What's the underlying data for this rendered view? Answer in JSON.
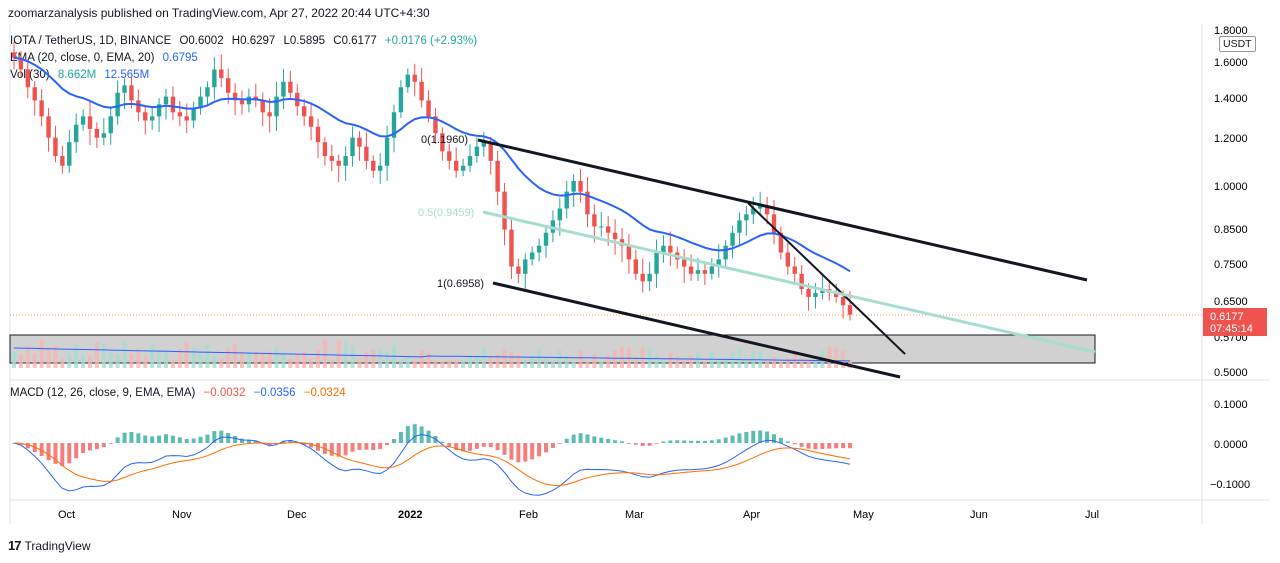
{
  "header": {
    "publisher": "zoomarzanalysis published on TradingView.com, Apr 27, 2022 20:44 UTC+4:30"
  },
  "watermark": {
    "logo": "17",
    "text": "TradingView"
  },
  "price_axis": {
    "unit_label": "USDT",
    "ticks": [
      "1.8000",
      "1.6000",
      "1.4000",
      "1.2000",
      "1.0000",
      "0.8500",
      "0.7500",
      "0.6500",
      "0.5700",
      "0.5000"
    ],
    "last_price": "0.6177",
    "countdown": "07:45:14",
    "last_price_color": "#ef5350"
  },
  "macd_axis": {
    "ticks": [
      "0.1000",
      "0.0000",
      "−0.1000"
    ]
  },
  "time_axis": {
    "labels": [
      "Oct",
      "Nov",
      "Dec",
      "2022",
      "Feb",
      "Mar",
      "Apr",
      "May",
      "Jun",
      "Jul"
    ]
  },
  "legend_main": {
    "symbol": "IOTA / TetherUS, 1D, BINANCE",
    "open": "O0.6002",
    "high": "H0.6297",
    "low": "L0.5895",
    "close": "C0.6177",
    "change": "+0.0176 (+2.93%)",
    "change_color": "#26a69a"
  },
  "legend_ema": {
    "label": "EMA (20, close, 0, EMA, 20)",
    "value": "0.6795",
    "color": "#2962ff"
  },
  "legend_vol": {
    "label": "Vol (30)",
    "value1": "8.662M",
    "value2": "12.565M",
    "color1": "#26a69a",
    "color2": "#2962ff"
  },
  "legend_macd": {
    "label": "MACD (12, 26, close, 9, EMA, EMA)",
    "hist": "−0.0032",
    "macd": "−0.0356",
    "signal": "−0.0324",
    "hist_color": "#ef5350",
    "macd_color": "#2962ff",
    "signal_color": "#ff6d00"
  },
  "annotations": {
    "fib_top": "0(1.1960)",
    "fib_mid": "0.5(0.9459)",
    "fib_bottom": "1(0.6958)"
  },
  "chart_data": {
    "type": "candlestick",
    "symbol": "IOTA / TetherUS",
    "interval": "1D",
    "y_scale": "log",
    "ylim": [
      0.49,
      1.85
    ],
    "colors": {
      "up": "#26a69a",
      "down": "#ef5350",
      "ema": "#2962ff",
      "macd": "#2962ff",
      "signal": "#ff6d00"
    },
    "close_series": [
      1.62,
      1.55,
      1.45,
      1.38,
      1.3,
      1.2,
      1.12,
      1.08,
      1.18,
      1.26,
      1.3,
      1.24,
      1.2,
      1.22,
      1.3,
      1.42,
      1.46,
      1.38,
      1.32,
      1.28,
      1.3,
      1.36,
      1.4,
      1.32,
      1.3,
      1.28,
      1.34,
      1.4,
      1.45,
      1.55,
      1.5,
      1.42,
      1.38,
      1.36,
      1.4,
      1.38,
      1.32,
      1.3,
      1.4,
      1.48,
      1.42,
      1.35,
      1.3,
      1.25,
      1.18,
      1.12,
      1.1,
      1.08,
      1.12,
      1.2,
      1.16,
      1.1,
      1.06,
      1.08,
      1.2,
      1.32,
      1.45,
      1.52,
      1.48,
      1.38,
      1.3,
      1.22,
      1.14,
      1.1,
      1.06,
      1.08,
      1.12,
      1.16,
      1.18,
      1.1,
      0.98,
      0.85,
      0.74,
      0.72,
      0.76,
      0.78,
      0.8,
      0.84,
      0.88,
      0.92,
      0.98,
      1.02,
      0.98,
      0.9,
      0.86,
      0.86,
      0.84,
      0.82,
      0.8,
      0.76,
      0.72,
      0.7,
      0.72,
      0.78,
      0.8,
      0.78,
      0.76,
      0.74,
      0.72,
      0.73,
      0.72,
      0.74,
      0.76,
      0.8,
      0.84,
      0.88,
      0.9,
      0.92,
      0.93,
      0.9,
      0.84,
      0.78,
      0.74,
      0.72,
      0.68,
      0.66,
      0.67,
      0.68,
      0.67,
      0.66,
      0.64,
      0.6177
    ],
    "ema20_last": 0.6795,
    "volume_mean": "12.565M",
    "volume_last": "8.662M",
    "macd_last": {
      "macd": -0.0356,
      "signal": -0.0324,
      "hist": -0.0032
    },
    "drawings": {
      "channel_upper": {
        "from": [
          "2022-01-17",
          1.2
        ],
        "to": [
          "2022-06-30",
          0.7
        ]
      },
      "channel_lower": {
        "from": [
          "2022-01-17",
          0.6958
        ],
        "to": [
          "2022-05-10",
          0.5
        ]
      },
      "down_trendline": {
        "from": [
          "2022-03-31",
          0.94
        ],
        "to": [
          "2022-05-10",
          0.55
        ]
      },
      "fib_levels": [
        {
          "level": 0,
          "price": 1.196
        },
        {
          "level": 0.5,
          "price": 0.9459
        },
        {
          "level": 1,
          "price": 0.6958
        }
      ],
      "rectangle": {
        "from": [
          "2021-09-20",
          0.582
        ],
        "to": [
          "2022-06-30",
          0.525
        ]
      }
    }
  }
}
